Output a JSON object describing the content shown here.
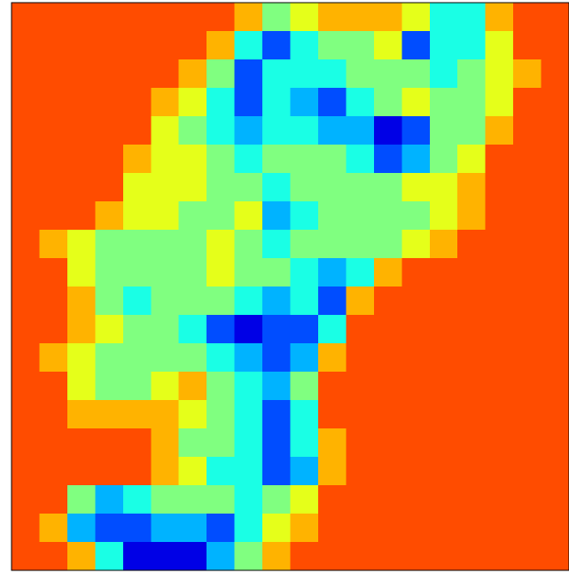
{
  "chart_data": {
    "type": "heatmap",
    "colormap": "jet",
    "zlim": [
      0,
      10
    ],
    "values": [
      [
        8,
        8,
        8,
        8,
        8,
        8,
        8,
        8,
        7,
        5,
        6,
        7,
        7,
        7,
        6,
        4,
        4,
        7,
        8,
        8
      ],
      [
        8,
        8,
        8,
        8,
        8,
        8,
        8,
        7,
        4,
        2,
        4,
        5,
        5,
        6,
        2,
        4,
        4,
        6,
        8,
        8
      ],
      [
        8,
        8,
        8,
        8,
        8,
        8,
        7,
        5,
        2,
        4,
        4,
        4,
        5,
        5,
        5,
        4,
        5,
        6,
        7,
        8
      ],
      [
        8,
        8,
        8,
        8,
        8,
        7,
        6,
        4,
        2,
        4,
        3,
        2,
        4,
        5,
        6,
        5,
        5,
        6,
        8,
        8
      ],
      [
        8,
        8,
        8,
        8,
        8,
        6,
        5,
        4,
        3,
        4,
        4,
        3,
        3,
        1,
        2,
        5,
        5,
        7,
        8,
        8
      ],
      [
        8,
        8,
        8,
        8,
        7,
        6,
        6,
        5,
        4,
        5,
        5,
        5,
        4,
        2,
        3,
        5,
        6,
        8,
        8,
        8
      ],
      [
        8,
        8,
        8,
        8,
        6,
        6,
        6,
        5,
        5,
        4,
        5,
        5,
        5,
        5,
        6,
        6,
        7,
        8,
        8,
        8
      ],
      [
        8,
        8,
        8,
        7,
        6,
        6,
        5,
        5,
        6,
        3,
        4,
        5,
        5,
        5,
        5,
        6,
        7,
        8,
        8,
        8
      ],
      [
        8,
        7,
        6,
        5,
        5,
        5,
        5,
        6,
        5,
        4,
        5,
        5,
        5,
        5,
        6,
        7,
        8,
        8,
        8,
        8
      ],
      [
        8,
        8,
        6,
        5,
        5,
        5,
        5,
        6,
        5,
        5,
        4,
        3,
        4,
        7,
        8,
        8,
        8,
        8,
        8,
        8
      ],
      [
        8,
        8,
        7,
        5,
        4,
        5,
        5,
        5,
        4,
        3,
        4,
        2,
        7,
        8,
        8,
        8,
        8,
        8,
        8,
        8
      ],
      [
        8,
        8,
        7,
        6,
        5,
        5,
        4,
        2,
        1,
        2,
        2,
        4,
        8,
        8,
        8,
        8,
        8,
        8,
        8,
        8
      ],
      [
        8,
        7,
        6,
        5,
        5,
        5,
        5,
        4,
        3,
        2,
        3,
        7,
        8,
        8,
        8,
        8,
        8,
        8,
        8,
        8
      ],
      [
        8,
        8,
        6,
        5,
        5,
        6,
        7,
        5,
        4,
        3,
        5,
        8,
        8,
        8,
        8,
        8,
        8,
        8,
        8,
        8
      ],
      [
        8,
        8,
        7,
        7,
        7,
        7,
        6,
        5,
        4,
        2,
        4,
        8,
        8,
        8,
        8,
        8,
        8,
        8,
        8,
        8
      ],
      [
        8,
        8,
        8,
        8,
        8,
        7,
        5,
        5,
        4,
        2,
        4,
        7,
        8,
        8,
        8,
        8,
        8,
        8,
        8,
        8
      ],
      [
        8,
        8,
        8,
        8,
        8,
        7,
        6,
        4,
        4,
        2,
        3,
        7,
        8,
        8,
        8,
        8,
        8,
        8,
        8,
        8
      ],
      [
        8,
        8,
        5,
        3,
        4,
        5,
        5,
        5,
        4,
        5,
        6,
        8,
        8,
        8,
        8,
        8,
        8,
        8,
        8,
        8
      ],
      [
        8,
        7,
        3,
        2,
        2,
        3,
        3,
        2,
        4,
        6,
        7,
        8,
        8,
        8,
        8,
        8,
        8,
        8,
        8,
        8
      ],
      [
        8,
        8,
        7,
        4,
        1,
        1,
        1,
        3,
        5,
        7,
        8,
        8,
        8,
        8,
        8,
        8,
        8,
        8,
        8,
        8
      ]
    ]
  }
}
